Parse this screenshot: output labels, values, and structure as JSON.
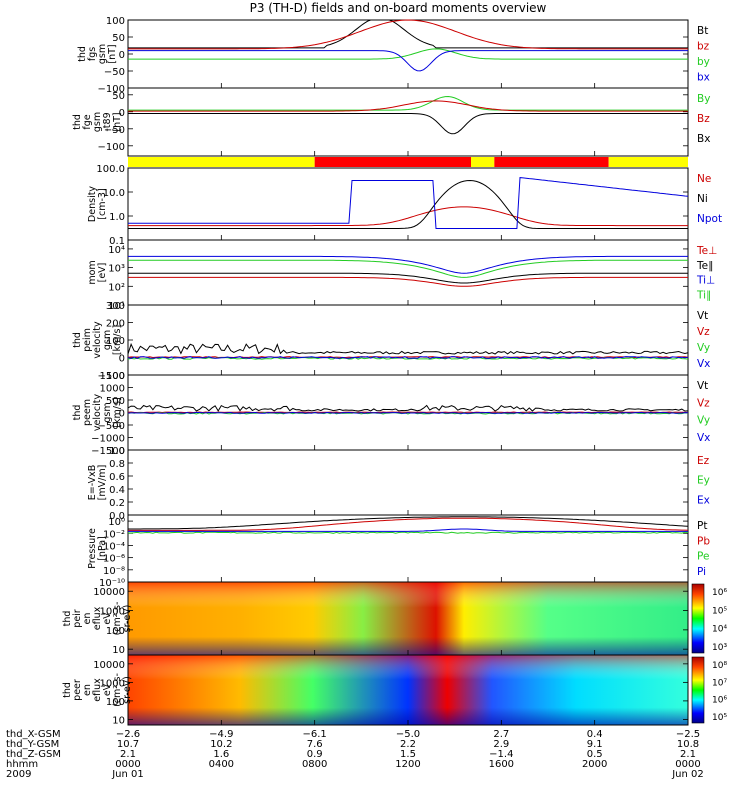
{
  "chart_data": {
    "type": "line",
    "title": "P3 (TH-D) fields and on-board moments overview",
    "panels": [
      {
        "id": "fgs",
        "ylabel": [
          "thd",
          "fgs",
          "gsm",
          "[nT]"
        ],
        "ylim": [
          -100,
          100
        ],
        "scale": "linear",
        "yticks": [
          {
            "v": 100,
            "t": "100"
          },
          {
            "v": 50,
            "t": "50"
          },
          {
            "v": 0,
            "t": "0"
          },
          {
            "v": -50,
            "t": "−50"
          },
          {
            "v": -100,
            "t": "−100"
          }
        ],
        "legend": [
          {
            "name": "Bt",
            "color": "#000000"
          },
          {
            "name": "bz",
            "color": "#cc0000"
          },
          {
            "name": "by",
            "color": "#22cc22"
          },
          {
            "name": "bx",
            "color": "#0000dd"
          }
        ]
      },
      {
        "id": "fge",
        "ylabel": [
          "thd",
          "fge",
          "gsm",
          "-t89",
          "[nT]"
        ],
        "ylim": [
          -130,
          70
        ],
        "scale": "linear",
        "yticks": [
          {
            "v": 50,
            "t": "50"
          },
          {
            "v": 0,
            "t": "0"
          },
          {
            "v": -50,
            "t": "−50"
          },
          {
            "v": -100,
            "t": "−100"
          }
        ],
        "legend": [
          {
            "name": "By",
            "color": "#22cc22"
          },
          {
            "name": "Bz",
            "color": "#cc0000"
          },
          {
            "name": "Bx",
            "color": "#000000"
          }
        ]
      },
      {
        "id": "density",
        "ylabel": [
          "Density",
          "[cm-3]"
        ],
        "ylim": [
          0.1,
          100
        ],
        "scale": "log",
        "yticks": [
          {
            "v": 100,
            "t": "100.0"
          },
          {
            "v": 10,
            "t": "10.0"
          },
          {
            "v": 1,
            "t": "1.0"
          },
          {
            "v": 0.1,
            "t": "0.1"
          }
        ],
        "legend": [
          {
            "name": "Ne",
            "color": "#cc0000"
          },
          {
            "name": "Ni",
            "color": "#000000"
          },
          {
            "name": "Npot",
            "color": "#0000dd"
          }
        ]
      },
      {
        "id": "temp",
        "ylabel": [
          "mom",
          "[eV]"
        ],
        "ylim": [
          10,
          30000
        ],
        "scale": "log",
        "yticks": [
          {
            "v": 10000,
            "t": "10⁴"
          },
          {
            "v": 1000,
            "t": "10³"
          },
          {
            "v": 100,
            "t": "10²"
          },
          {
            "v": 10,
            "t": "10¹"
          }
        ],
        "legend": [
          {
            "name": "Te⊥",
            "color": "#cc0000"
          },
          {
            "name": "Te∥",
            "color": "#000000"
          },
          {
            "name": "Ti⊥",
            "color": "#0000dd"
          },
          {
            "name": "Ti∥",
            "color": "#22cc22"
          }
        ]
      },
      {
        "id": "peim",
        "ylabel": [
          "thd",
          "peim",
          "velocity",
          "gsm",
          "[km/s]"
        ],
        "ylim": [
          -100,
          300
        ],
        "scale": "linear",
        "yticks": [
          {
            "v": 300,
            "t": "300"
          },
          {
            "v": 200,
            "t": "200"
          },
          {
            "v": 100,
            "t": "100"
          },
          {
            "v": 0,
            "t": "0"
          },
          {
            "v": -100,
            "t": "−100"
          }
        ],
        "legend": [
          {
            "name": "Vt",
            "color": "#000000"
          },
          {
            "name": "Vz",
            "color": "#cc0000"
          },
          {
            "name": "Vy",
            "color": "#22cc22"
          },
          {
            "name": "Vx",
            "color": "#0000dd"
          }
        ]
      },
      {
        "id": "peem",
        "ylabel": [
          "thd",
          "peem",
          "velocity",
          "gsm",
          "[km/s]"
        ],
        "ylim": [
          -1500,
          1500
        ],
        "scale": "linear",
        "yticks": [
          {
            "v": 1500,
            "t": "1500"
          },
          {
            "v": 1000,
            "t": "1000"
          },
          {
            "v": 500,
            "t": "500"
          },
          {
            "v": 0,
            "t": "0"
          },
          {
            "v": -500,
            "t": "−500"
          },
          {
            "v": -1000,
            "t": "−1000"
          },
          {
            "v": -1500,
            "t": "−1500"
          }
        ],
        "legend": [
          {
            "name": "Vt",
            "color": "#000000"
          },
          {
            "name": "Vz",
            "color": "#cc0000"
          },
          {
            "name": "Vy",
            "color": "#22cc22"
          },
          {
            "name": "Vx",
            "color": "#0000dd"
          }
        ]
      },
      {
        "id": "efield",
        "ylabel": [
          "E=-VxB",
          "[mV/m]"
        ],
        "ylim": [
          0,
          1
        ],
        "scale": "linear",
        "yticks": [
          {
            "v": 1,
            "t": "1.0"
          },
          {
            "v": 0.8,
            "t": "0.8"
          },
          {
            "v": 0.6,
            "t": "0.6"
          },
          {
            "v": 0.4,
            "t": "0.4"
          },
          {
            "v": 0.2,
            "t": "0.2"
          },
          {
            "v": 0,
            "t": "0.0"
          }
        ],
        "legend": [
          {
            "name": "Ez",
            "color": "#cc0000"
          },
          {
            "name": "Ey",
            "color": "#22cc22"
          },
          {
            "name": "Ex",
            "color": "#0000dd"
          }
        ]
      },
      {
        "id": "pressure",
        "ylabel": [
          "Pressure",
          "[nPa]"
        ],
        "ylim": [
          1e-10,
          10
        ],
        "scale": "log",
        "yticks": [
          {
            "v": 1,
            "t": "10⁰"
          },
          {
            "v": 0.01,
            "t": "10⁻²"
          },
          {
            "v": 0.0001,
            "t": "10⁻⁴"
          },
          {
            "v": 1e-06,
            "t": "10⁻⁶"
          },
          {
            "v": 1e-08,
            "t": "10⁻⁸"
          },
          {
            "v": 1e-10,
            "t": "10⁻¹⁰"
          }
        ],
        "legend": [
          {
            "name": "Pt",
            "color": "#000000"
          },
          {
            "name": "Pb",
            "color": "#cc0000"
          },
          {
            "name": "Pe",
            "color": "#22cc22"
          },
          {
            "name": "Pi",
            "color": "#0000dd"
          }
        ]
      },
      {
        "id": "peir",
        "ylabel": [
          "thd",
          "peir",
          "en",
          "eflux",
          "eV",
          "(cm²-s-",
          "sr-eV)"
        ],
        "ylim": [
          5,
          30000
        ],
        "scale": "log",
        "yticks": [
          {
            "v": 10000,
            "t": "10000"
          },
          {
            "v": 1000,
            "t": "1000"
          },
          {
            "v": 100,
            "t": "100"
          },
          {
            "v": 10,
            "t": "10"
          }
        ],
        "colorbar": [
          "10⁶",
          "10⁵",
          "10⁴",
          "10³"
        ]
      },
      {
        "id": "peer",
        "ylabel": [
          "thd",
          "peer",
          "en",
          "eflux",
          "eV",
          "(cm²-s-",
          "sr-eV)"
        ],
        "ylim": [
          5,
          30000
        ],
        "scale": "log",
        "yticks": [
          {
            "v": 10000,
            "t": "10000"
          },
          {
            "v": 1000,
            "t": "1000"
          },
          {
            "v": 100,
            "t": "100"
          },
          {
            "v": 10,
            "t": "10"
          }
        ],
        "colorbar": [
          "10⁸",
          "10⁷",
          "10⁶",
          "10⁵"
        ]
      }
    ],
    "xaxis": {
      "range_hours": [
        0,
        24
      ],
      "ticks_hours": [
        0,
        4,
        8,
        12,
        16,
        20,
        24
      ],
      "rows": [
        {
          "label": "thd_X-GSM",
          "values": [
            "−2.6",
            "−4.9",
            "−6.1",
            "−5.0",
            "2.7",
            "0.4",
            "−2.5"
          ]
        },
        {
          "label": "thd_Y-GSM",
          "values": [
            "10.7",
            "10.2",
            "7.6",
            "2.2",
            "2.9",
            "9.1",
            "10.8"
          ]
        },
        {
          "label": "thd_Z-GSM",
          "values": [
            "2.1",
            "1.6",
            "0.9",
            "1.5",
            "−1.4",
            "0.5",
            "2.1"
          ]
        },
        {
          "label": "hhmm",
          "values": [
            "0000",
            "0400",
            "0800",
            "1200",
            "1600",
            "2000",
            "0000"
          ]
        },
        {
          "label": "2009",
          "values": [
            "Jun 01",
            "",
            "",
            "",
            "",
            "",
            "Jun 02"
          ]
        }
      ]
    },
    "mode_bar": [
      {
        "from": 0,
        "to": 8,
        "color": "#ffff00"
      },
      {
        "from": 8,
        "to": 14.7,
        "color": "#ff0000"
      },
      {
        "from": 14.7,
        "to": 15.7,
        "color": "#ffff00"
      },
      {
        "from": 15.7,
        "to": 20.6,
        "color": "#ff0000"
      },
      {
        "from": 20.6,
        "to": 24,
        "color": "#ffff00"
      }
    ]
  }
}
